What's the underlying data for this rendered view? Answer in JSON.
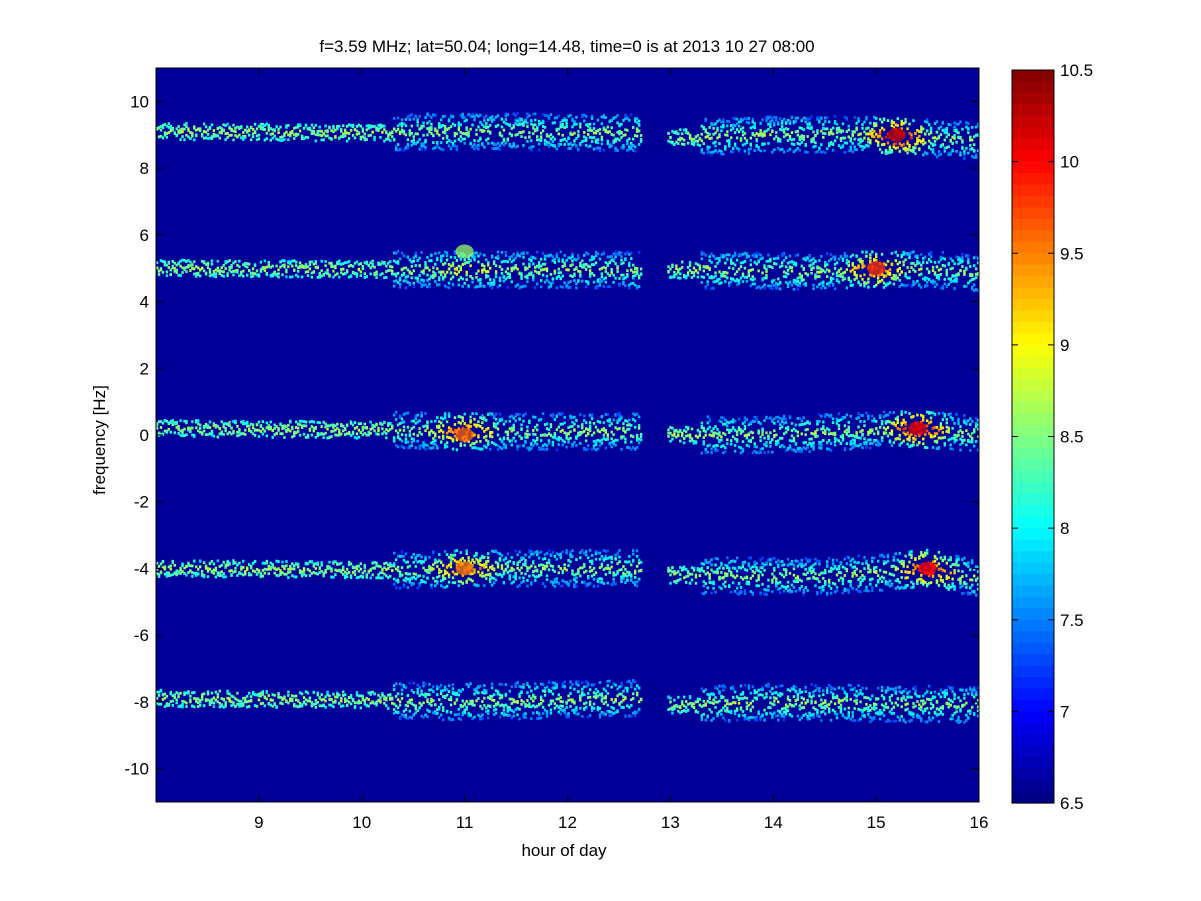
{
  "chart_data": {
    "type": "heatmap",
    "title": "f=3.59 MHz;  lat=50.04; long=14.48, time=0 is at 2013 10 27 08:00",
    "xlabel": "hour of day",
    "ylabel": "frequency [Hz]",
    "xlim": [
      8.0,
      16.0
    ],
    "ylim": [
      -11.0,
      11.0
    ],
    "x_ticks": [
      9,
      10,
      11,
      12,
      13,
      14,
      15,
      16
    ],
    "x_tick_labels": [
      "9",
      "10",
      "11",
      "12",
      "13",
      "14",
      "15",
      "16"
    ],
    "y_ticks": [
      10,
      8,
      6,
      4,
      2,
      0,
      -2,
      -4,
      -6,
      -8,
      -10
    ],
    "y_tick_labels": [
      "10",
      "8",
      "6",
      "4",
      "2",
      "0",
      "-2",
      "-4",
      "-6",
      "-8",
      "-10"
    ],
    "colorbar": {
      "min": 6.5,
      "max": 10.5,
      "ticks": [
        10.5,
        10,
        9.5,
        9,
        8.5,
        8,
        7.5,
        7,
        6.5
      ],
      "tick_labels": [
        "10.5",
        "10",
        "9.5",
        "9",
        "8.5",
        "8",
        "7.5",
        "7",
        "6.5"
      ],
      "colormap": "jet"
    },
    "background_value": 6.6,
    "data_gap_hours": [
      12.72,
      12.98
    ],
    "bands": [
      {
        "freq_hz": 9.0,
        "trace": [
          [
            8.0,
            9.1
          ],
          [
            10.0,
            9.05
          ],
          [
            11.0,
            9.1
          ],
          [
            12.7,
            9.05
          ],
          [
            13.0,
            8.9
          ],
          [
            14.0,
            9.0
          ],
          [
            15.0,
            9.0
          ],
          [
            16.0,
            8.8
          ]
        ]
      },
      {
        "freq_hz": 5.0,
        "trace": [
          [
            8.0,
            5.0
          ],
          [
            11.0,
            4.95
          ],
          [
            13.0,
            4.95
          ],
          [
            14.5,
            4.9
          ],
          [
            15.3,
            5.0
          ],
          [
            16.0,
            4.85
          ]
        ]
      },
      {
        "freq_hz": 0.0,
        "trace": [
          [
            8.0,
            0.2
          ],
          [
            10.0,
            0.15
          ],
          [
            11.0,
            0.1
          ],
          [
            12.7,
            0.1
          ],
          [
            13.0,
            0.0
          ],
          [
            14.0,
            0.0
          ],
          [
            15.4,
            0.2
          ],
          [
            16.0,
            0.0
          ]
        ]
      },
      {
        "freq_hz": -4.0,
        "trace": [
          [
            8.0,
            -4.0
          ],
          [
            10.5,
            -4.05
          ],
          [
            11.0,
            -4.0
          ],
          [
            12.7,
            -4.0
          ],
          [
            13.0,
            -4.2
          ],
          [
            14.5,
            -4.25
          ],
          [
            15.5,
            -4.0
          ],
          [
            16.0,
            -4.3
          ]
        ]
      },
      {
        "freq_hz": -8.0,
        "trace": [
          [
            8.0,
            -7.9
          ],
          [
            10.0,
            -7.95
          ],
          [
            11.0,
            -8.0
          ],
          [
            12.7,
            -7.9
          ],
          [
            13.0,
            -8.1
          ],
          [
            14.0,
            -8.0
          ],
          [
            15.0,
            -8.05
          ],
          [
            16.0,
            -8.1
          ]
        ]
      }
    ],
    "bright_spots": [
      {
        "x": 11.0,
        "y": 0.0,
        "value": 9.6
      },
      {
        "x": 11.0,
        "y": -4.0,
        "value": 9.5
      },
      {
        "x": 11.0,
        "y": 5.5,
        "value": 8.6
      },
      {
        "x": 15.2,
        "y": 9.0,
        "value": 10.2
      },
      {
        "x": 15.4,
        "y": 0.2,
        "value": 10.1
      },
      {
        "x": 15.5,
        "y": -4.0,
        "value": 10.0
      },
      {
        "x": 15.0,
        "y": 5.0,
        "value": 9.8
      }
    ]
  }
}
